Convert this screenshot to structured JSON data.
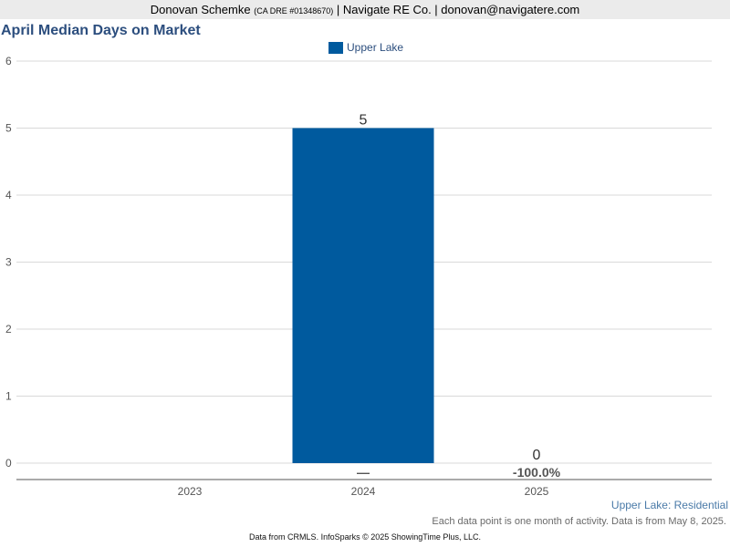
{
  "header": {
    "agent_name": "Donovan Schemke",
    "license": "(CA DRE #01348670)",
    "rest": "| Navigate RE Co. | donovan@navigatere.com"
  },
  "chart_data": {
    "type": "bar",
    "title": "April Median Days on Market",
    "categories": [
      "2023",
      "2024",
      "2025"
    ],
    "series": [
      {
        "name": "Upper Lake",
        "values": [
          null,
          5,
          0
        ],
        "color": "#005a9e"
      }
    ],
    "data_labels": [
      "",
      "5",
      "0"
    ],
    "change_labels": [
      "",
      "—",
      "-100.0%"
    ],
    "y_ticks": [
      "0",
      "1",
      "2",
      "3",
      "4",
      "5",
      "6"
    ],
    "ylim": [
      0,
      6
    ],
    "grid": true,
    "legend_position": "top-center"
  },
  "footer": {
    "caption": "Upper Lake: Residential",
    "note": "Each data point is one month of activity. Data is from May 8, 2025.",
    "credit": "Data from CRMLS. InfoSparks © 2025 ShowingTime Plus, LLC."
  }
}
